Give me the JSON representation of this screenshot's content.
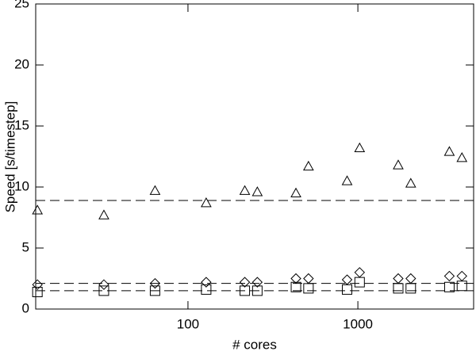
{
  "chart_data": {
    "type": "scatter",
    "x_label": "# cores",
    "y_label": "Speed [s/timestep]",
    "xscale": "log",
    "xlim": [
      12.7,
      4800
    ],
    "xticks": [
      100,
      1000
    ],
    "ylim": [
      0,
      25
    ],
    "yticks": [
      0,
      5,
      10,
      15,
      20,
      25
    ],
    "x": [
      13,
      32,
      64,
      128,
      216,
      256,
      432,
      512,
      864,
      1024,
      1728,
      2048,
      3456,
      4096
    ],
    "series": [
      {
        "marker": "triangle",
        "color": "#000000",
        "values": [
          8.1,
          7.7,
          9.7,
          8.7,
          9.7,
          9.6,
          9.5,
          11.7,
          10.5,
          13.2,
          11.8,
          10.3,
          12.9,
          12.4
        ]
      },
      {
        "marker": "diamond",
        "color": "#000000",
        "values": [
          2.0,
          2.0,
          2.1,
          2.2,
          2.2,
          2.2,
          2.5,
          2.5,
          2.4,
          3.0,
          2.5,
          2.5,
          2.7,
          2.7
        ]
      },
      {
        "marker": "square",
        "color": "#000000",
        "values": [
          1.4,
          1.5,
          1.5,
          1.6,
          1.5,
          1.5,
          1.8,
          1.7,
          1.6,
          2.2,
          1.7,
          1.7,
          1.8,
          1.9
        ]
      }
    ],
    "reference_lines": [
      8.9,
      2.1,
      1.5
    ]
  }
}
